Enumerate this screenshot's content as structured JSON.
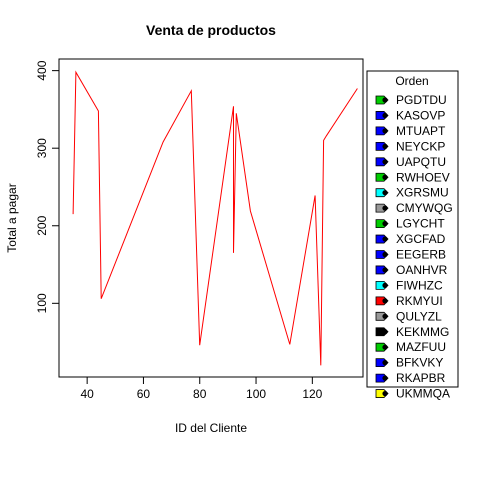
{
  "chart_data": {
    "type": "line",
    "title": "Venta de productos",
    "xlabel": "ID del Cliente",
    "ylabel": "Total a pagar",
    "xlim": [
      30,
      138
    ],
    "ylim": [
      5,
      415
    ],
    "x_ticks": [
      40,
      60,
      80,
      100,
      120
    ],
    "y_ticks": [
      100,
      200,
      300,
      400
    ],
    "grid": false,
    "line_color": "#ff0000",
    "series": [
      {
        "x": [
          35,
          36,
          44,
          45,
          67,
          77,
          80,
          92,
          92,
          93,
          98,
          112,
          121,
          123,
          124,
          125,
          136
        ],
        "y": [
          215,
          398,
          348,
          106,
          308,
          374,
          46,
          354,
          165,
          345,
          219,
          47,
          239,
          20,
          310,
          316,
          377
        ]
      }
    ],
    "legend": {
      "title": "Orden",
      "position": "right",
      "entries": [
        {
          "label": "PGDTDU",
          "color": "#00cd00",
          "dot": "#000000"
        },
        {
          "label": "KASOVP",
          "color": "#0000ff",
          "dot": "#000000"
        },
        {
          "label": "MTUAPT",
          "color": "#0000ff",
          "dot": "#000000"
        },
        {
          "label": "NEYCKP",
          "color": "#0000ff",
          "dot": "#000000"
        },
        {
          "label": "UAPQTU",
          "color": "#0000ff",
          "dot": "#000000"
        },
        {
          "label": "RWHOEV",
          "color": "#00cd00",
          "dot": "#000000"
        },
        {
          "label": "XGRSMU",
          "color": "#00ffff",
          "dot": "#000000"
        },
        {
          "label": "CMYWQG",
          "color": "#999999",
          "dot": "#000000"
        },
        {
          "label": "LGYCHT",
          "color": "#00cd00",
          "dot": "#000000"
        },
        {
          "label": "XGCFAD",
          "color": "#0000ff",
          "dot": "#000000"
        },
        {
          "label": "EEGERB",
          "color": "#0000ff",
          "dot": "#000000"
        },
        {
          "label": "OANHVR",
          "color": "#0000ff",
          "dot": "#000000"
        },
        {
          "label": "FIWHZC",
          "color": "#00ffff",
          "dot": "#000000"
        },
        {
          "label": "RKMYUI",
          "color": "#ff0000",
          "dot": "#000000"
        },
        {
          "label": "QULYZL",
          "color": "#999999",
          "dot": "#000000"
        },
        {
          "label": "KEKMMG",
          "color": "#000000",
          "dot": "#000000"
        },
        {
          "label": "MAZFUU",
          "color": "#00cd00",
          "dot": "#000000"
        },
        {
          "label": "BFKVKY",
          "color": "#0000ff",
          "dot": "#000000"
        },
        {
          "label": "RKAPBR",
          "color": "#0000ff",
          "dot": "#000000"
        },
        {
          "label": "UKMMQA",
          "color": "#ffff00",
          "dot": "#000000"
        }
      ]
    }
  }
}
